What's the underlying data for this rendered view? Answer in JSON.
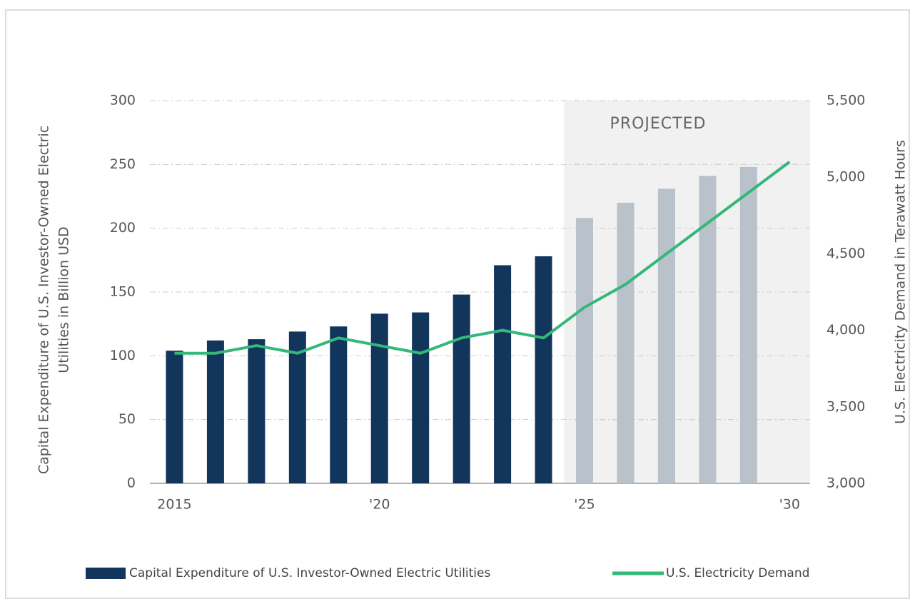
{
  "chart_data": {
    "type": "bar_line",
    "ylabel": [
      "Capital Expenditure of U.S. Investor-Owned Electric",
      "Utilities in Billion USD"
    ],
    "y2label": "U.S. Electricity Demand in Terawatt Hours",
    "annotation": {
      "text": "PROJECTED",
      "x_start": 2024.5,
      "x_end": 2030.5,
      "color": "#f1f1f1"
    },
    "xlim": [
      2014.4,
      2030.5
    ],
    "xticks": [
      2015,
      {
        "value": 2020,
        "label": "'20"
      },
      {
        "value": 2025,
        "label": "'25"
      },
      {
        "value": 2030,
        "label": "'30"
      }
    ],
    "ylim": [
      0,
      300
    ],
    "yticks": [
      0,
      50,
      100,
      150,
      200,
      250,
      300
    ],
    "y2lim": [
      3000,
      5500
    ],
    "y2ticks": [
      {
        "value": 3000,
        "label": "3,000"
      },
      {
        "value": 3500,
        "label": "3,500"
      },
      {
        "value": 4000,
        "label": "4,000"
      },
      {
        "value": 4500,
        "label": "4,500"
      },
      {
        "value": 5000,
        "label": "5,000"
      },
      {
        "value": 5500,
        "label": "5,500"
      }
    ],
    "grid": true,
    "legend": "bottom",
    "series": [
      {
        "name": "Capital Expenditure of U.S. Investor-Owned Electric Utilities",
        "type": "bar",
        "color": "#12355b",
        "x": [
          2015,
          2016,
          2017,
          2018,
          2019,
          2020,
          2021,
          2022,
          2023,
          2024,
          2025,
          2026,
          2027,
          2028,
          2029
        ],
        "values": [
          104,
          112,
          113,
          119,
          123,
          133,
          134,
          148,
          171,
          178,
          208,
          220,
          231,
          241,
          248
        ],
        "colors": [
          "#12355b",
          "#12355b",
          "#12355b",
          "#12355b",
          "#12355b",
          "#12355b",
          "#12355b",
          "#12355b",
          "#12355b",
          "#12355b",
          "#b9c1cb",
          "#b9c1cb",
          "#b9c1cb",
          "#b9c1cb",
          "#b9c1cb"
        ]
      },
      {
        "name": "U.S. Electricity Demand",
        "type": "line",
        "axis": "y2",
        "color": "#33b87a",
        "x": [
          2015,
          2016,
          2017,
          2018,
          2019,
          2020,
          2021,
          2022,
          2023,
          2024,
          2025,
          2026,
          2027,
          2028,
          2029,
          2030
        ],
        "values": [
          3850,
          3850,
          3900,
          3850,
          3950,
          3900,
          3850,
          3950,
          4000,
          3950,
          4150,
          4300,
          4500,
          4700,
          4900,
          5100
        ]
      }
    ]
  }
}
